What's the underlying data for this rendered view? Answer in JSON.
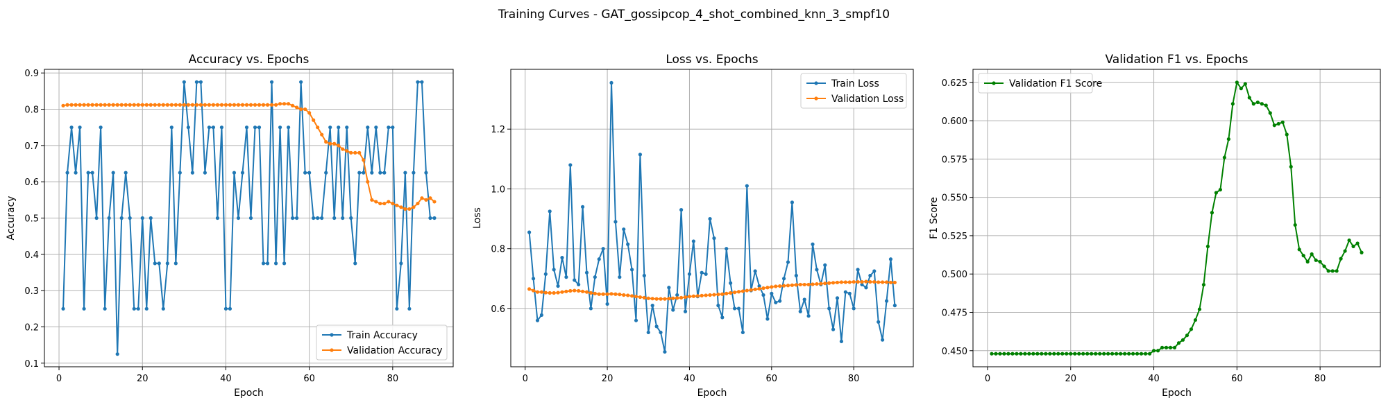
{
  "figure": {
    "title": "Training Curves - GAT_gossipcop_4_shot_combined_knn_3_smpf10"
  },
  "colors": {
    "train": "#1f77b4",
    "validation": "#ff7f0e",
    "f1": "#008000",
    "grid": "#b0b0b0"
  },
  "chart_data": [
    {
      "type": "line",
      "title": "Accuracy vs. Epochs",
      "xlabel": "Epoch",
      "ylabel": "Accuracy",
      "xlim": [
        -3.5,
        94.5
      ],
      "ylim": [
        0.09,
        0.91
      ],
      "xticks": [
        0,
        20,
        40,
        60,
        80
      ],
      "yticks": [
        0.1,
        0.2,
        0.3,
        0.4,
        0.5,
        0.6,
        0.7,
        0.8,
        0.9
      ],
      "ytick_labels": [
        "0.1",
        "0.2",
        "0.3",
        "0.4",
        "0.5",
        "0.6",
        "0.7",
        "0.8",
        "0.9"
      ],
      "grid": true,
      "legend_position": "lower-right",
      "series": [
        {
          "name": "Train Accuracy",
          "color": "#1f77b4",
          "values": [
            0.25,
            0.625,
            0.75,
            0.625,
            0.75,
            0.25,
            0.625,
            0.625,
            0.5,
            0.75,
            0.25,
            0.5,
            0.625,
            0.125,
            0.5,
            0.625,
            0.5,
            0.25,
            0.25,
            0.5,
            0.25,
            0.5,
            0.375,
            0.375,
            0.25,
            0.375,
            0.75,
            0.375,
            0.625,
            0.875,
            0.75,
            0.625,
            0.875,
            0.875,
            0.625,
            0.75,
            0.75,
            0.5,
            0.75,
            0.25,
            0.25,
            0.625,
            0.5,
            0.625,
            0.75,
            0.5,
            0.75,
            0.75,
            0.375,
            0.375,
            0.875,
            0.375,
            0.75,
            0.375,
            0.75,
            0.5,
            0.5,
            0.875,
            0.625,
            0.625,
            0.5,
            0.5,
            0.5,
            0.625,
            0.75,
            0.5,
            0.75,
            0.5,
            0.75,
            0.5,
            0.375,
            0.625,
            0.625,
            0.75,
            0.625,
            0.75,
            0.625,
            0.625,
            0.75,
            0.75,
            0.25,
            0.375,
            0.625,
            0.25,
            0.625,
            0.875,
            0.875,
            0.625,
            0.5,
            0.5
          ]
        },
        {
          "name": "Validation Accuracy",
          "color": "#ff7f0e",
          "values": [
            0.81,
            0.812,
            0.812,
            0.812,
            0.812,
            0.812,
            0.812,
            0.812,
            0.812,
            0.812,
            0.812,
            0.812,
            0.812,
            0.812,
            0.812,
            0.812,
            0.812,
            0.812,
            0.812,
            0.812,
            0.812,
            0.812,
            0.812,
            0.812,
            0.812,
            0.812,
            0.812,
            0.812,
            0.812,
            0.812,
            0.812,
            0.812,
            0.812,
            0.812,
            0.812,
            0.812,
            0.812,
            0.812,
            0.812,
            0.812,
            0.812,
            0.812,
            0.812,
            0.812,
            0.812,
            0.812,
            0.812,
            0.812,
            0.812,
            0.812,
            0.812,
            0.812,
            0.815,
            0.815,
            0.815,
            0.81,
            0.805,
            0.8,
            0.8,
            0.79,
            0.77,
            0.75,
            0.73,
            0.71,
            0.705,
            0.705,
            0.7,
            0.69,
            0.685,
            0.68,
            0.68,
            0.68,
            0.66,
            0.6,
            0.55,
            0.545,
            0.54,
            0.54,
            0.545,
            0.54,
            0.535,
            0.53,
            0.525,
            0.525,
            0.53,
            0.54,
            0.555,
            0.55,
            0.555,
            0.545
          ]
        }
      ]
    },
    {
      "type": "line",
      "title": "Loss vs. Epochs",
      "xlabel": "Epoch",
      "ylabel": "Loss",
      "xlim": [
        -3.5,
        94.5
      ],
      "ylim": [
        0.405,
        1.4
      ],
      "xticks": [
        0,
        20,
        40,
        60,
        80
      ],
      "yticks": [
        0.6,
        0.8,
        1.0,
        1.2
      ],
      "ytick_labels": [
        "0.6",
        "0.8",
        "1.0",
        "1.2"
      ],
      "grid": true,
      "legend_position": "upper-right",
      "series": [
        {
          "name": "Train Loss",
          "color": "#1f77b4",
          "values": [
            0.855,
            0.7,
            0.56,
            0.578,
            0.715,
            0.925,
            0.73,
            0.675,
            0.77,
            0.705,
            1.08,
            0.695,
            0.68,
            0.94,
            0.72,
            0.6,
            0.705,
            0.765,
            0.8,
            0.615,
            1.355,
            0.89,
            0.705,
            0.865,
            0.815,
            0.73,
            0.56,
            1.115,
            0.71,
            0.52,
            0.61,
            0.54,
            0.52,
            0.455,
            0.67,
            0.595,
            0.645,
            0.93,
            0.59,
            0.715,
            0.825,
            0.64,
            0.72,
            0.715,
            0.9,
            0.835,
            0.61,
            0.57,
            0.8,
            0.685,
            0.6,
            0.6,
            0.52,
            1.01,
            0.66,
            0.725,
            0.675,
            0.645,
            0.565,
            0.65,
            0.62,
            0.625,
            0.7,
            0.755,
            0.955,
            0.71,
            0.59,
            0.63,
            0.575,
            0.815,
            0.73,
            0.68,
            0.745,
            0.6,
            0.53,
            0.635,
            0.49,
            0.655,
            0.65,
            0.6,
            0.73,
            0.68,
            0.67,
            0.71,
            0.725,
            0.555,
            0.495,
            0.625,
            0.765,
            0.61
          ]
        },
        {
          "name": "Validation Loss",
          "color": "#ff7f0e",
          "values": [
            0.665,
            0.66,
            0.655,
            0.655,
            0.653,
            0.652,
            0.652,
            0.653,
            0.655,
            0.657,
            0.659,
            0.66,
            0.659,
            0.657,
            0.655,
            0.652,
            0.65,
            0.648,
            0.648,
            0.648,
            0.649,
            0.648,
            0.647,
            0.645,
            0.644,
            0.642,
            0.64,
            0.638,
            0.636,
            0.634,
            0.633,
            0.632,
            0.632,
            0.632,
            0.633,
            0.634,
            0.635,
            0.636,
            0.638,
            0.64,
            0.641,
            0.642,
            0.643,
            0.644,
            0.645,
            0.646,
            0.647,
            0.648,
            0.65,
            0.652,
            0.654,
            0.656,
            0.658,
            0.66,
            0.662,
            0.664,
            0.666,
            0.668,
            0.67,
            0.672,
            0.674,
            0.675,
            0.676,
            0.677,
            0.678,
            0.679,
            0.68,
            0.68,
            0.68,
            0.681,
            0.682,
            0.683,
            0.684,
            0.685,
            0.686,
            0.687,
            0.688,
            0.688,
            0.688,
            0.689,
            0.689,
            0.689,
            0.69,
            0.689,
            0.689,
            0.688,
            0.688,
            0.688,
            0.687,
            0.687
          ]
        }
      ]
    },
    {
      "type": "line",
      "title": "Validation F1 vs. Epochs",
      "xlabel": "Epoch",
      "ylabel": "F1 Score",
      "xlim": [
        -3.5,
        94.5
      ],
      "ylim": [
        0.4395,
        0.6335
      ],
      "xticks": [
        0,
        20,
        40,
        60,
        80
      ],
      "yticks": [
        0.45,
        0.475,
        0.5,
        0.525,
        0.55,
        0.575,
        0.6,
        0.625
      ],
      "ytick_labels": [
        "0.450",
        "0.475",
        "0.500",
        "0.525",
        "0.550",
        "0.575",
        "0.600",
        "0.625"
      ],
      "grid": true,
      "legend_position": "upper-left",
      "series": [
        {
          "name": "Validation F1 Score",
          "color": "#008000",
          "values": [
            0.448,
            0.448,
            0.448,
            0.448,
            0.448,
            0.448,
            0.448,
            0.448,
            0.448,
            0.448,
            0.448,
            0.448,
            0.448,
            0.448,
            0.448,
            0.448,
            0.448,
            0.448,
            0.448,
            0.448,
            0.448,
            0.448,
            0.448,
            0.448,
            0.448,
            0.448,
            0.448,
            0.448,
            0.448,
            0.448,
            0.448,
            0.448,
            0.448,
            0.448,
            0.448,
            0.448,
            0.448,
            0.448,
            0.448,
            0.45,
            0.45,
            0.452,
            0.452,
            0.452,
            0.452,
            0.455,
            0.457,
            0.46,
            0.464,
            0.47,
            0.477,
            0.493,
            0.518,
            0.54,
            0.553,
            0.555,
            0.576,
            0.588,
            0.611,
            0.625,
            0.621,
            0.624,
            0.615,
            0.611,
            0.612,
            0.611,
            0.61,
            0.605,
            0.597,
            0.598,
            0.599,
            0.591,
            0.57,
            0.532,
            0.516,
            0.512,
            0.508,
            0.513,
            0.509,
            0.508,
            0.505,
            0.502,
            0.502,
            0.502,
            0.51,
            0.515,
            0.522,
            0.518,
            0.52,
            0.514
          ]
        }
      ]
    }
  ]
}
